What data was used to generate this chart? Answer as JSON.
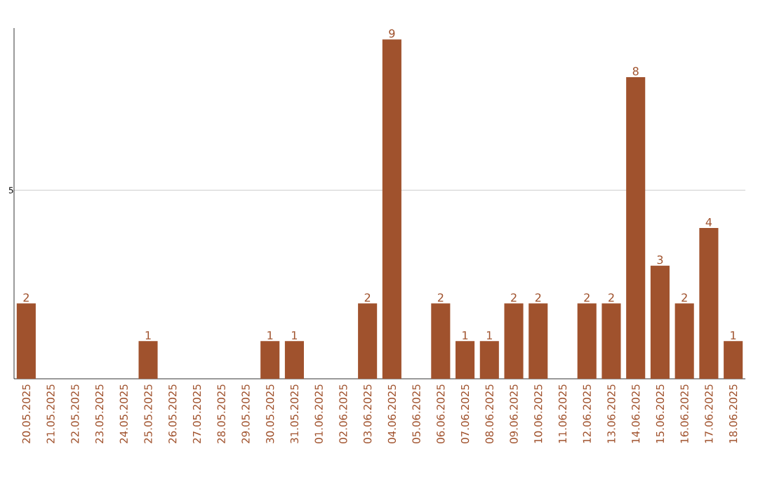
{
  "chart_data": {
    "type": "bar",
    "categories": [
      "20.05.2025",
      "21.05.2025",
      "22.05.2025",
      "23.05.2025",
      "24.05.2025",
      "25.05.2025",
      "26.05.2025",
      "27.05.2025",
      "28.05.2025",
      "29.05.2025",
      "30.05.2025",
      "31.05.2025",
      "01.06.2025",
      "02.06.2025",
      "03.06.2025",
      "04.06.2025",
      "05.06.2025",
      "06.06.2025",
      "07.06.2025",
      "08.06.2025",
      "09.06.2025",
      "10.06.2025",
      "11.06.2025",
      "12.06.2025",
      "13.06.2025",
      "14.06.2025",
      "15.06.2025",
      "16.06.2025",
      "17.06.2025",
      "18.06.2025"
    ],
    "values": [
      2,
      0,
      0,
      0,
      0,
      1,
      0,
      0,
      0,
      0,
      1,
      1,
      0,
      0,
      2,
      9,
      0,
      2,
      1,
      1,
      2,
      2,
      0,
      2,
      2,
      8,
      3,
      2,
      4,
      1
    ],
    "value_labels": [
      "2",
      null,
      null,
      null,
      null,
      "1",
      null,
      null,
      null,
      null,
      "1",
      "1",
      null,
      null,
      "2",
      "9",
      null,
      "2",
      "1",
      "1",
      "2",
      "2",
      null,
      "2",
      "2",
      "8",
      "3",
      "2",
      "4",
      "1"
    ],
    "color": "#a0522d",
    "ylim": [
      0,
      9.3
    ],
    "yticks": [
      5
    ],
    "grid": "y"
  }
}
